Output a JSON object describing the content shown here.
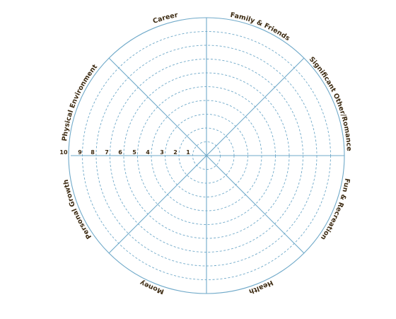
{
  "wheel": {
    "categories": [
      "Career",
      "Family & Friends",
      "Significant Other/Romance",
      "Fun & Recreation",
      "Health",
      "Money",
      "Personal Growth",
      "Physical Environment"
    ],
    "scale": [
      "1",
      "2",
      "3",
      "4",
      "5",
      "6",
      "7",
      "8",
      "9",
      "10"
    ],
    "colors": {
      "lines": "#6fa9c9",
      "text": "#3d2b12"
    }
  }
}
